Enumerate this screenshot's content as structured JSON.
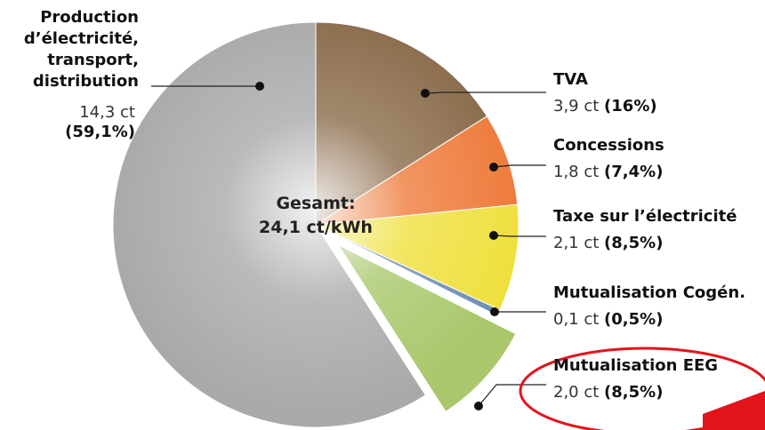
{
  "chart_data": {
    "type": "pie",
    "categories": [
      "Production d’électricité, transport, distribution",
      "TVA",
      "Concessions",
      "Taxe sur l’électricité",
      "Mutualisation Cogén.",
      "Mutualisation EEG"
    ],
    "values": [
      59.1,
      16,
      7.4,
      8.5,
      0.5,
      8.5
    ],
    "value_labels": [
      "(59,1%)",
      "(16%)",
      "(7,4%)",
      "(8,5%)",
      "(0,5%)",
      "(8,5%)"
    ],
    "details": [
      "14,3 ct",
      "3,9 ct",
      "1,8 ct",
      "2,1 ct",
      "0,1 ct",
      "2,0 ct"
    ],
    "colors": [
      "#a9a9ab",
      "#8a6b4a",
      "#ee7b3b",
      "#efe03e",
      "#6e8db3",
      "#a9c86c"
    ],
    "exploded": "Mutualisation EEG",
    "center_label": [
      "Gesamt:",
      "24,1 ct/kWh"
    ],
    "highlighted": "Mutualisation EEG",
    "overlay_text": "é"
  }
}
